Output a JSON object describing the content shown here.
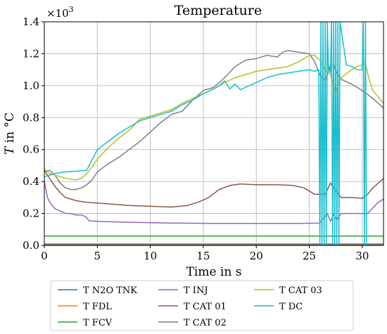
{
  "chart_data": {
    "type": "line",
    "title": "Temperature",
    "xlabel": "Time in s",
    "ylabel_italic": "T",
    "ylabel_rest": " in °C",
    "y_scale_base": "×10",
    "y_scale_exp": "3",
    "xlim": [
      0,
      32
    ],
    "ylim": [
      0,
      1.4
    ],
    "x_ticks": [
      0,
      5,
      10,
      15,
      20,
      25,
      30
    ],
    "y_ticks": [
      0.0,
      0.2,
      0.4,
      0.6,
      0.8,
      1.0,
      1.2,
      1.4
    ],
    "x_tick_labels": [
      "0",
      "5",
      "10",
      "15",
      "20",
      "25",
      "30"
    ],
    "y_tick_labels": [
      "0.0",
      "0.2",
      "0.4",
      "0.6",
      "0.8",
      "1.0",
      "1.2",
      "1.4"
    ],
    "grid": true,
    "legend_position": "below",
    "series": [
      {
        "name": "T N2O TNK",
        "color": "#1f77b4",
        "x": [
          0,
          32
        ],
        "y": [
          0.005,
          0.005
        ]
      },
      {
        "name": "T FDL",
        "color": "#ff7f0e",
        "x": [
          0,
          32
        ],
        "y": [
          0.01,
          0.01
        ]
      },
      {
        "name": "T FCV",
        "color": "#2ca02c",
        "x": [
          0,
          32
        ],
        "y": [
          0.058,
          0.058
        ]
      },
      {
        "name": "T INJ",
        "color": "#9467bd",
        "x": [
          0,
          0.3,
          0.6,
          1.0,
          1.3,
          1.7,
          2.0,
          2.5,
          3.0,
          3.5,
          3.9,
          4.2,
          5.0,
          8.0,
          12.0,
          16.0,
          20.0,
          24.0,
          26.0,
          26.7,
          27.0,
          27.3,
          27.6,
          28.0,
          29.0,
          30.0,
          30.5,
          31.0,
          31.5,
          32.0
        ],
        "y": [
          0.4,
          0.3,
          0.26,
          0.23,
          0.22,
          0.21,
          0.2,
          0.2,
          0.19,
          0.19,
          0.18,
          0.155,
          0.15,
          0.145,
          0.14,
          0.138,
          0.138,
          0.138,
          0.14,
          0.2,
          0.15,
          0.195,
          0.16,
          0.2,
          0.2,
          0.2,
          0.2,
          0.235,
          0.27,
          0.29
        ]
      },
      {
        "name": "T CAT 01",
        "color": "#8c564b",
        "x": [
          0,
          0.5,
          1.0,
          1.5,
          2.0,
          3.0,
          4.0,
          6.0,
          8.0,
          10.0,
          12.0,
          13.5,
          14.5,
          15.5,
          16.5,
          17.5,
          18.5,
          20.0,
          22.0,
          23.5,
          24.5,
          25.5,
          26.5,
          27.0,
          27.5,
          28.0,
          29.0,
          30.0,
          30.5,
          31.0,
          31.5,
          32.0
        ],
        "y": [
          0.47,
          0.42,
          0.37,
          0.33,
          0.3,
          0.28,
          0.27,
          0.26,
          0.25,
          0.245,
          0.24,
          0.25,
          0.27,
          0.3,
          0.35,
          0.375,
          0.385,
          0.38,
          0.38,
          0.375,
          0.36,
          0.32,
          0.32,
          0.39,
          0.34,
          0.3,
          0.3,
          0.295,
          0.32,
          0.36,
          0.39,
          0.42
        ]
      },
      {
        "name": "T CAT 02",
        "color": "#7f7f7f",
        "x": [
          0,
          0.5,
          1.0,
          1.5,
          2.0,
          2.5,
          3.0,
          3.5,
          4.0,
          4.5,
          5.0,
          6.0,
          7.0,
          8.0,
          9.0,
          10.0,
          11.0,
          12.0,
          13.0,
          14.0,
          15.0,
          16.0,
          17.0,
          18.0,
          19.0,
          20.0,
          21.0,
          22.0,
          22.5,
          23.0,
          24.0,
          25.0,
          25.5,
          26.0,
          26.5,
          27.0,
          27.3,
          27.6,
          28.0,
          29.0,
          30.0,
          31.0,
          32.0
        ],
        "y": [
          0.46,
          0.47,
          0.44,
          0.39,
          0.36,
          0.35,
          0.35,
          0.36,
          0.38,
          0.41,
          0.46,
          0.51,
          0.55,
          0.6,
          0.65,
          0.71,
          0.77,
          0.82,
          0.84,
          0.91,
          0.97,
          0.99,
          1.05,
          1.12,
          1.16,
          1.17,
          1.19,
          1.18,
          1.21,
          1.22,
          1.21,
          1.2,
          1.15,
          1.07,
          1.03,
          1.12,
          1.13,
          1.08,
          1.04,
          1.01,
          0.97,
          0.92,
          0.86
        ]
      },
      {
        "name": "T CAT 03",
        "color": "#bcbd22",
        "x": [
          0,
          0.5,
          1.0,
          1.5,
          2.0,
          2.5,
          3.0,
          3.5,
          4.0,
          4.5,
          5.0,
          6.0,
          7.0,
          8.0,
          9.0,
          10.0,
          11.0,
          12.0,
          13.0,
          14.0,
          15.0,
          16.0,
          17.0,
          18.0,
          19.0,
          20.0,
          21.0,
          22.0,
          23.0,
          24.0,
          25.0,
          25.5,
          26.0,
          26.5,
          27.0,
          27.5,
          28.0,
          29.0,
          29.5,
          30.0,
          30.3,
          30.6,
          31.0,
          32.0
        ],
        "y": [
          0.48,
          0.45,
          0.44,
          0.43,
          0.42,
          0.415,
          0.41,
          0.42,
          0.45,
          0.49,
          0.54,
          0.61,
          0.67,
          0.72,
          0.79,
          0.81,
          0.83,
          0.85,
          0.89,
          0.92,
          0.95,
          0.98,
          1.02,
          1.05,
          1.07,
          1.09,
          1.1,
          1.11,
          1.12,
          1.15,
          1.19,
          1.19,
          1.16,
          1.1,
          1.07,
          0.96,
          1.05,
          1.1,
          1.12,
          1.13,
          1.14,
          1.05,
          0.97,
          0.89
        ]
      },
      {
        "name": "T DC",
        "color": "#17becf",
        "x": [
          0,
          0.5,
          1.0,
          2.0,
          3.0,
          4.0,
          5.0,
          6.0,
          7.0,
          8.0,
          9.0,
          10.0,
          11.0,
          12.0,
          13.0,
          14.0,
          15.0,
          16.0,
          16.5,
          17.0,
          17.5,
          18.0,
          18.5,
          19.0,
          20.0,
          21.0,
          22.0,
          23.0,
          24.0,
          25.0,
          25.5,
          25.9,
          26.0,
          26.1,
          26.2,
          26.3,
          26.4,
          26.5,
          26.6,
          26.7,
          26.8,
          26.9,
          27.0,
          27.1,
          27.2,
          27.3,
          27.4,
          27.5,
          27.6,
          27.7,
          27.8,
          27.9,
          28.5,
          29.0,
          29.5,
          30.0,
          30.1,
          30.2,
          30.3,
          30.4,
          30.5
        ],
        "y": [
          0.43,
          0.44,
          0.45,
          0.46,
          0.465,
          0.47,
          0.6,
          0.65,
          0.7,
          0.74,
          0.78,
          0.8,
          0.82,
          0.84,
          0.88,
          0.91,
          0.95,
          0.98,
          1.0,
          1.03,
          0.98,
          1.01,
          0.975,
          0.99,
          1.02,
          1.05,
          1.07,
          1.08,
          1.09,
          1.1,
          1.09,
          1.1,
          0.0,
          1.4,
          0.0,
          1.4,
          0.0,
          1.4,
          0.0,
          1.4,
          1.1,
          1.12,
          1.08,
          1.4,
          0.0,
          1.4,
          0.0,
          1.4,
          0.0,
          1.4,
          0.0,
          1.4,
          1.13,
          1.12,
          1.1,
          1.1,
          1.4,
          0.0,
          1.4,
          0.0,
          0.0
        ]
      }
    ]
  }
}
